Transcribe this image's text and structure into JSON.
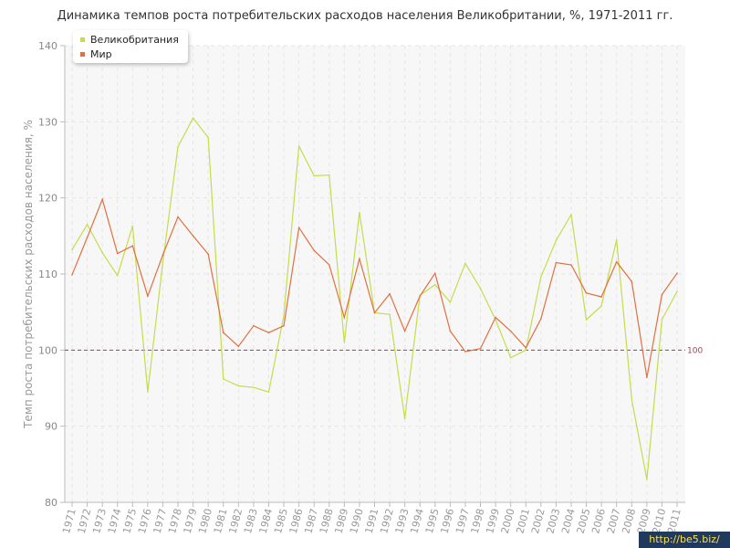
{
  "chart_data": {
    "type": "line",
    "title": "Динамика темпов роста потребительских расходов населения Великобритании, %, 1971-2011 гг.",
    "xlabel": "",
    "ylabel": "Темп роста потребительских расходов населения, %",
    "ylim": [
      80,
      140
    ],
    "yticks": [
      80,
      90,
      100,
      110,
      120,
      130,
      140
    ],
    "grid": true,
    "legend_position": "top-left",
    "categories": [
      "1971",
      "1972",
      "1973",
      "1974",
      "1975",
      "1976",
      "1977",
      "1978",
      "1979",
      "1980",
      "1981",
      "1982",
      "1983",
      "1984",
      "1985",
      "1986",
      "1987",
      "1988",
      "1989",
      "1990",
      "1991",
      "1992",
      "1993",
      "1994",
      "1995",
      "1996",
      "1997",
      "1998",
      "1999",
      "2000",
      "2001",
      "2002",
      "2003",
      "2004",
      "2005",
      "2006",
      "2007",
      "2008",
      "2009",
      "2010",
      "2011"
    ],
    "series": [
      {
        "name": "Великобритания",
        "color": "#c5dc4c",
        "values": [
          113.2,
          116.5,
          112.8,
          109.8,
          116.3,
          94.5,
          111.5,
          126.7,
          130.5,
          127.9,
          96.2,
          95.3,
          95.1,
          94.5,
          104.5,
          126.8,
          122.9,
          123.0,
          101.0,
          118.1,
          104.9,
          104.7,
          91.0,
          107.2,
          108.6,
          106.3,
          111.4,
          108.1,
          104.0,
          99.0,
          100.0,
          109.6,
          114.4,
          117.8,
          104.0,
          105.8,
          114.5,
          93.5,
          83.0,
          104.0,
          107.7
        ]
      },
      {
        "name": "Мир",
        "color": "#e07040",
        "values": [
          109.9,
          114.8,
          119.8,
          112.7,
          113.7,
          107.1,
          112.5,
          117.5,
          115.0,
          112.6,
          102.3,
          100.5,
          103.2,
          102.3,
          103.2,
          116.1,
          113.1,
          111.2,
          104.3,
          112.0,
          104.9,
          107.4,
          102.5,
          107.1,
          110.1,
          102.5,
          99.8,
          100.2,
          104.3,
          102.5,
          100.3,
          104.1,
          111.5,
          111.2,
          107.5,
          107.0,
          111.6,
          109.0,
          96.4,
          107.3,
          110.1
        ]
      }
    ],
    "reference_line": {
      "value": 100,
      "label": "100",
      "color": "#a04050"
    }
  },
  "watermark": {
    "text": "http://be5.biz/"
  }
}
